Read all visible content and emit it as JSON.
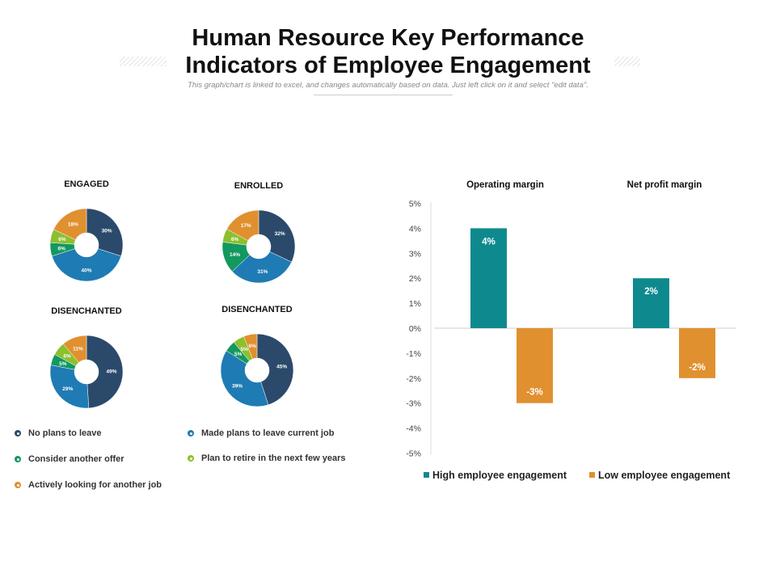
{
  "header": {
    "title_line1": "Human Resource Key Performance",
    "title_line2": "Indicators of Employee Engagement",
    "subtitle": "This graph/chart is linked to excel, and changes automatically based on data. Just left click on it and select \"edit data\"."
  },
  "colors": {
    "no_plans": "#2b4a6b",
    "made_plans": "#1f7bb3",
    "consider": "#13985f",
    "retire": "#8dbf2f",
    "actively": "#e0902f",
    "high": "#0e8a8f",
    "low": "#e0902f"
  },
  "pie_legend": [
    {
      "label": "No plans to leave",
      "color": "#2b4a6b"
    },
    {
      "label": "Made plans to leave current job",
      "color": "#1f7bb3"
    },
    {
      "label": "Consider another offer",
      "color": "#13985f"
    },
    {
      "label": "Plan to retire in the next few years",
      "color": "#8dbf2f"
    },
    {
      "label": "Actively looking for another job",
      "color": "#e0902f"
    }
  ],
  "chart_data": [
    {
      "type": "pie",
      "title": "ENGAGED",
      "categories": [
        "No plans to leave",
        "Made plans to leave current job",
        "Consider another offer",
        "Plan to retire in the next few years",
        "Actively looking for another job"
      ],
      "values": [
        30,
        40,
        6,
        6,
        18
      ],
      "labels": [
        "30%",
        "40%",
        "6%",
        "6%",
        "18%"
      ]
    },
    {
      "type": "pie",
      "title": "ENROLLED",
      "categories": [
        "No plans to leave",
        "Made plans to leave current job",
        "Consider another offer",
        "Plan to retire in the next few years",
        "Actively looking for another job"
      ],
      "values": [
        32,
        31,
        14,
        6,
        17
      ],
      "labels": [
        "32%",
        "31%",
        "14%",
        "6%",
        "17%"
      ]
    },
    {
      "type": "pie",
      "title": "DISENCHANTED",
      "categories": [
        "No plans to leave",
        "Made plans to leave current job",
        "Consider another offer",
        "Plan to retire in the next few years",
        "Actively looking for another job"
      ],
      "values": [
        49,
        29,
        5,
        6,
        11
      ],
      "labels": [
        "49%",
        "29%",
        "5%",
        "6%",
        "11%"
      ]
    },
    {
      "type": "pie",
      "title": "DISENCHANTED",
      "categories": [
        "No plans to leave",
        "Made plans to leave current job",
        "Consider another offer",
        "Plan to retire in the next few years",
        "Actively looking for another job"
      ],
      "values": [
        45,
        39,
        5,
        5,
        6
      ],
      "labels": [
        "45%",
        "39%",
        "5%",
        "5%",
        "6%"
      ]
    },
    {
      "type": "bar",
      "categories": [
        "Operating margin",
        "Net profit margin"
      ],
      "series": [
        {
          "name": "High employee engagement",
          "values": [
            4,
            2
          ],
          "labels": [
            "4%",
            "2%"
          ]
        },
        {
          "name": "Low employee engagement",
          "values": [
            -3,
            -2
          ],
          "labels": [
            "-3%",
            "-2%"
          ]
        }
      ],
      "ylim": [
        -5,
        5
      ],
      "yticks": [
        "5%",
        "4%",
        "3%",
        "2%",
        "1%",
        "0%",
        "-1%",
        "-2%",
        "-3%",
        "-4%",
        "-5%"
      ],
      "legend": "bottom",
      "grid": false
    }
  ]
}
